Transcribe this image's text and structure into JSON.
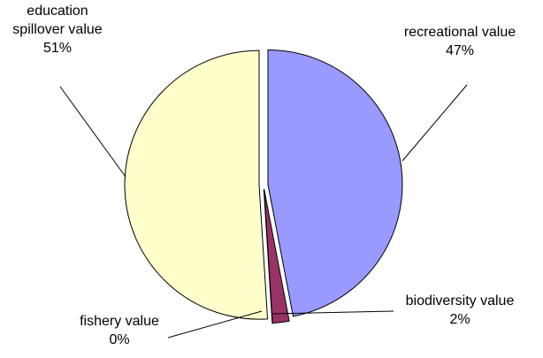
{
  "chart_data": {
    "type": "pie",
    "categories": [
      "recreational value",
      "biodiversity value",
      "fishery value",
      "education spillover value"
    ],
    "values": [
      47,
      2,
      0,
      51
    ],
    "value_labels": [
      "47%",
      "2%",
      "0%",
      "51%"
    ],
    "colors": [
      "#9999ff",
      "#993366",
      "#ccffff",
      "#ffffcc"
    ]
  }
}
